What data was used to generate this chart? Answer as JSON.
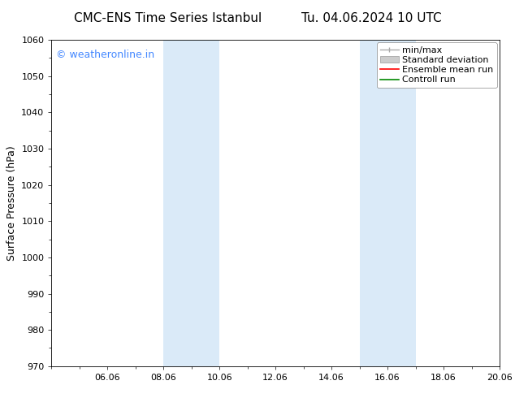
{
  "title": "CMC-ENS Time Series Istanbul",
  "title2": "Tu. 04.06.2024 10 UTC",
  "ylabel": "Surface Pressure (hPa)",
  "ylim": [
    970,
    1060
  ],
  "yticks": [
    970,
    980,
    990,
    1000,
    1010,
    1020,
    1030,
    1040,
    1050,
    1060
  ],
  "xlim": [
    0,
    16
  ],
  "xtick_labels": [
    "06.06",
    "08.06",
    "10.06",
    "12.06",
    "14.06",
    "16.06",
    "18.06",
    "20.06"
  ],
  "xtick_positions": [
    2,
    4,
    6,
    8,
    10,
    12,
    14,
    16
  ],
  "shaded_bands": [
    {
      "xstart": 4,
      "xend": 6
    },
    {
      "xstart": 11,
      "xend": 13
    }
  ],
  "watermark_text": "© weatheronline.in",
  "watermark_color": "#4488ff",
  "bg_color": "#ffffff",
  "plot_bg_color": "#ffffff",
  "shade_color": "#daeaf8",
  "legend_items": [
    {
      "label": "min/max",
      "color": "#aaaaaa",
      "style": "line_with_caps"
    },
    {
      "label": "Standard deviation",
      "color": "#cccccc",
      "style": "filled"
    },
    {
      "label": "Ensemble mean run",
      "color": "#ff0000",
      "style": "line"
    },
    {
      "label": "Controll run",
      "color": "#008800",
      "style": "line"
    }
  ],
  "font_family": "DejaVu Sans",
  "title_fontsize": 11,
  "tick_fontsize": 8,
  "legend_fontsize": 8,
  "watermark_fontsize": 9,
  "ylabel_fontsize": 9
}
